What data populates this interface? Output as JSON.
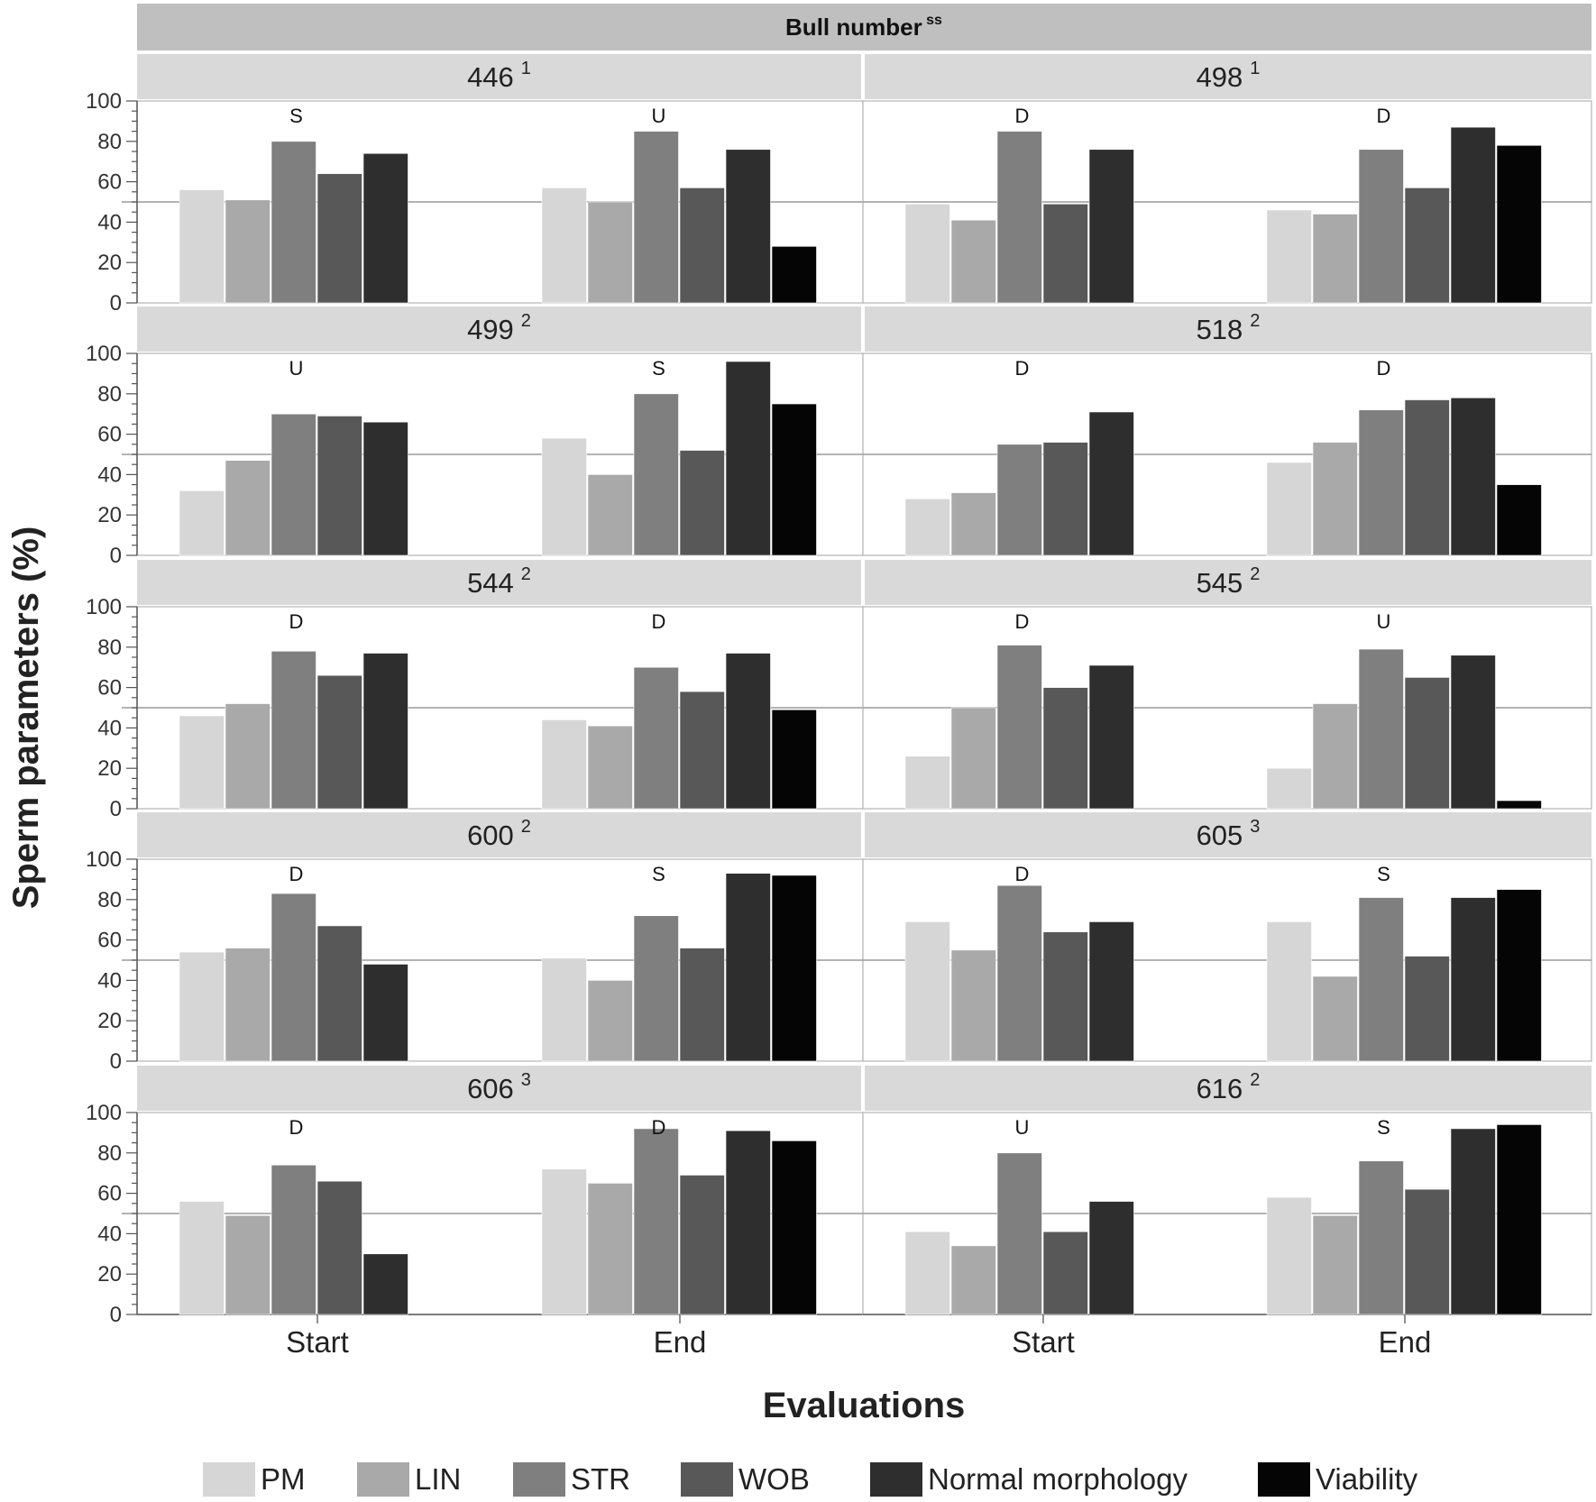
{
  "chart_data": {
    "type": "bar",
    "title": "Bull number",
    "title_superscript": "ss",
    "xlabel": "Evaluations",
    "ylabel": "Sperm parameters (%)",
    "ylim": [
      0,
      100
    ],
    "yticks": [
      "0",
      "20",
      "40",
      "60",
      "80",
      "100"
    ],
    "reference_line": 50,
    "categories": [
      "Start",
      "End"
    ],
    "series_names": [
      "PM",
      "LIN",
      "STR",
      "WOB",
      "Normal morphology",
      "Viability"
    ],
    "colors": {
      "PM": "#d6d6d6",
      "LIN": "#a9a9a9",
      "STR": "#7f7f7f",
      "WOB": "#585858",
      "Normal morphology": "#2e2e2e",
      "Viability": "#050505",
      "strip": "#d9d9d9",
      "header": "#bfbfbf",
      "refline": "#9a9a9a"
    },
    "panels": [
      {
        "bull": "446",
        "group": "1",
        "evaluations": [
          {
            "category": "Start",
            "letter": "S",
            "values": [
              56,
              51,
              80,
              64,
              74,
              null
            ]
          },
          {
            "category": "End",
            "letter": "U",
            "values": [
              57,
              50,
              85,
              57,
              76,
              28
            ]
          }
        ]
      },
      {
        "bull": "498",
        "group": "1",
        "evaluations": [
          {
            "category": "Start",
            "letter": "D",
            "values": [
              49,
              41,
              85,
              49,
              76,
              null
            ]
          },
          {
            "category": "End",
            "letter": "D",
            "values": [
              46,
              44,
              76,
              57,
              87,
              78
            ]
          }
        ]
      },
      {
        "bull": "499",
        "group": "2",
        "evaluations": [
          {
            "category": "Start",
            "letter": "U",
            "values": [
              32,
              47,
              70,
              69,
              66,
              null
            ]
          },
          {
            "category": "End",
            "letter": "S",
            "values": [
              58,
              40,
              80,
              52,
              96,
              75
            ]
          }
        ]
      },
      {
        "bull": "518",
        "group": "2",
        "evaluations": [
          {
            "category": "Start",
            "letter": "D",
            "values": [
              28,
              31,
              55,
              56,
              71,
              null
            ]
          },
          {
            "category": "End",
            "letter": "D",
            "values": [
              46,
              56,
              72,
              77,
              78,
              35
            ]
          }
        ]
      },
      {
        "bull": "544",
        "group": "2",
        "evaluations": [
          {
            "category": "Start",
            "letter": "D",
            "values": [
              46,
              52,
              78,
              66,
              77,
              null
            ]
          },
          {
            "category": "End",
            "letter": "D",
            "values": [
              44,
              41,
              70,
              58,
              77,
              49
            ]
          }
        ]
      },
      {
        "bull": "545",
        "group": "2",
        "evaluations": [
          {
            "category": "Start",
            "letter": "D",
            "values": [
              26,
              50,
              81,
              60,
              71,
              null
            ]
          },
          {
            "category": "End",
            "letter": "U",
            "values": [
              20,
              52,
              79,
              65,
              76,
              4
            ]
          }
        ]
      },
      {
        "bull": "600",
        "group": "2",
        "evaluations": [
          {
            "category": "Start",
            "letter": "D",
            "values": [
              54,
              56,
              83,
              67,
              48,
              null
            ]
          },
          {
            "category": "End",
            "letter": "S",
            "values": [
              51,
              40,
              72,
              56,
              93,
              92
            ]
          }
        ]
      },
      {
        "bull": "605",
        "group": "3",
        "evaluations": [
          {
            "category": "Start",
            "letter": "D",
            "values": [
              69,
              55,
              87,
              64,
              69,
              null
            ]
          },
          {
            "category": "End",
            "letter": "S",
            "values": [
              69,
              42,
              81,
              52,
              81,
              85
            ]
          }
        ]
      },
      {
        "bull": "606",
        "group": "3",
        "evaluations": [
          {
            "category": "Start",
            "letter": "D",
            "values": [
              56,
              49,
              74,
              66,
              30,
              null
            ]
          },
          {
            "category": "End",
            "letter": "D",
            "values": [
              72,
              65,
              92,
              69,
              91,
              86
            ]
          }
        ]
      },
      {
        "bull": "616",
        "group": "2",
        "evaluations": [
          {
            "category": "Start",
            "letter": "U",
            "values": [
              41,
              34,
              80,
              41,
              56,
              null
            ]
          },
          {
            "category": "End",
            "letter": "S",
            "values": [
              58,
              49,
              76,
              62,
              92,
              94
            ]
          }
        ]
      }
    ]
  }
}
